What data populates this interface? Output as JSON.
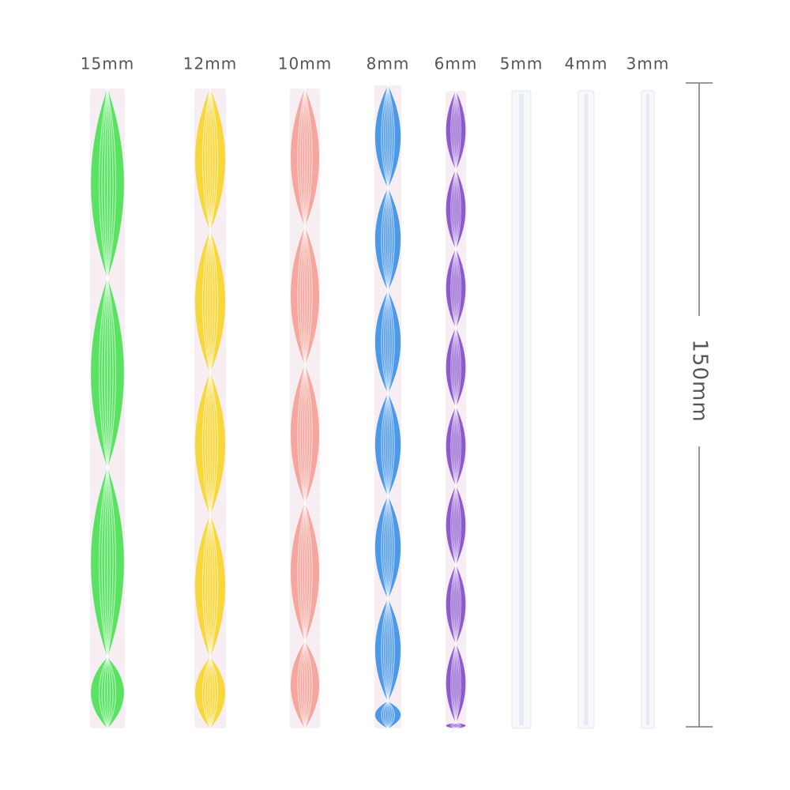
{
  "rods": [
    {
      "label": "15mm"
    },
    {
      "label": "12mm"
    },
    {
      "label": "10mm"
    },
    {
      "label": "8mm"
    },
    {
      "label": "6mm"
    },
    {
      "label": "5mm"
    },
    {
      "label": "4mm"
    },
    {
      "label": "3mm"
    }
  ],
  "dimension": {
    "label": "150mm"
  }
}
